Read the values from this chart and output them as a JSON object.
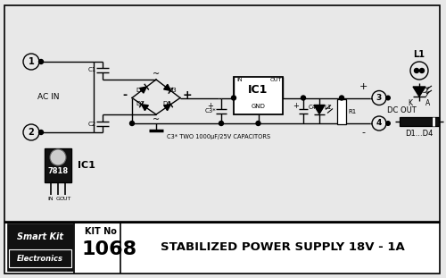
{
  "title": "STABILIZED POWER SUPPLY 18V - 1A",
  "kit_no": "1068",
  "kit_label": "KIT No",
  "bg_color": "#e8e8e8",
  "line_color": "#000000",
  "text_color": "#000000",
  "cap_note": "C3* TWO 1000μF/25V CAPACITORS",
  "d1d4_label": "D1...D4",
  "ac_in_label": "AC IN",
  "dc_out_label": "DC OUT",
  "ic_chip": "7818"
}
